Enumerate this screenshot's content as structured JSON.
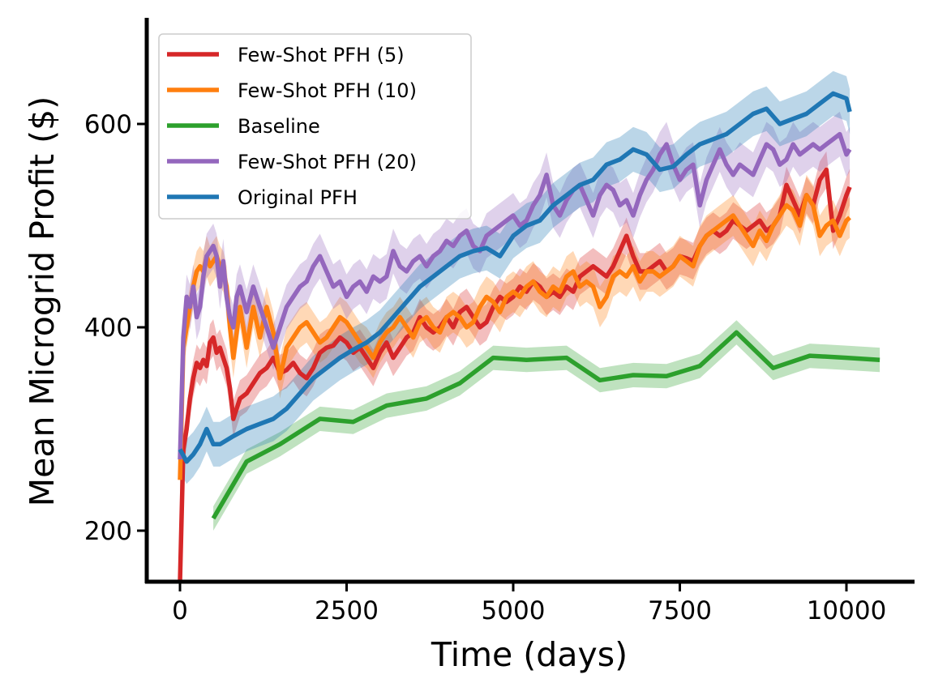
{
  "chart_data": {
    "type": "line",
    "title": "",
    "xlabel": "Time (days)",
    "ylabel": "Mean Microgrid Profit ($)",
    "xlim": [
      -500,
      11000
    ],
    "ylim": [
      150,
      700
    ],
    "xticks": [
      0,
      2500,
      5000,
      7500,
      10000
    ],
    "yticks": [
      200,
      400,
      600
    ],
    "grid": false,
    "legend_position": "top-left",
    "series": [
      {
        "name": "Few-Shot PFH (5)",
        "color": "#d62728",
        "band": 18,
        "x": [
          0,
          50,
          100,
          150,
          200,
          250,
          300,
          350,
          400,
          450,
          500,
          550,
          600,
          650,
          700,
          750,
          800,
          850,
          900,
          1000,
          1100,
          1200,
          1300,
          1400,
          1500,
          1600,
          1700,
          1800,
          1900,
          2000,
          2100,
          2200,
          2300,
          2400,
          2500,
          2600,
          2700,
          2800,
          2900,
          3000,
          3100,
          3200,
          3300,
          3400,
          3500,
          3600,
          3700,
          3800,
          3900,
          4000,
          4100,
          4200,
          4300,
          4400,
          4500,
          4600,
          4700,
          4800,
          4900,
          5000,
          5100,
          5200,
          5300,
          5400,
          5500,
          5600,
          5700,
          5800,
          5900,
          6000,
          6100,
          6200,
          6300,
          6400,
          6500,
          6600,
          6700,
          6800,
          6900,
          7000,
          7100,
          7200,
          7300,
          7400,
          7500,
          7600,
          7700,
          7800,
          7900,
          8000,
          8100,
          8200,
          8300,
          8400,
          8500,
          8600,
          8700,
          8800,
          8900,
          9000,
          9100,
          9200,
          9300,
          9400,
          9500,
          9600,
          9700,
          9800,
          9900,
          10000,
          10050
        ],
        "y": [
          150,
          280,
          300,
          330,
          350,
          365,
          360,
          368,
          362,
          385,
          390,
          375,
          380,
          370,
          360,
          340,
          310,
          320,
          330,
          335,
          345,
          355,
          360,
          370,
          355,
          358,
          365,
          355,
          350,
          360,
          375,
          380,
          382,
          390,
          385,
          375,
          380,
          370,
          360,
          375,
          385,
          370,
          380,
          390,
          395,
          410,
          400,
          395,
          400,
          410,
          400,
          415,
          420,
          410,
          400,
          405,
          420,
          430,
          425,
          430,
          440,
          435,
          445,
          440,
          430,
          435,
          430,
          440,
          435,
          450,
          455,
          460,
          455,
          450,
          460,
          475,
          490,
          470,
          455,
          455,
          460,
          465,
          455,
          460,
          470,
          468,
          465,
          480,
          490,
          495,
          490,
          495,
          505,
          500,
          495,
          500,
          505,
          495,
          500,
          510,
          540,
          525,
          510,
          530,
          520,
          545,
          555,
          495,
          510,
          530,
          538
        ]
      },
      {
        "name": "Few-Shot PFH (10)",
        "color": "#ff7f0e",
        "band": 20,
        "x": [
          0,
          50,
          100,
          150,
          200,
          250,
          300,
          350,
          400,
          450,
          500,
          550,
          600,
          650,
          700,
          750,
          800,
          850,
          900,
          1000,
          1100,
          1200,
          1300,
          1400,
          1500,
          1600,
          1700,
          1800,
          1900,
          2000,
          2100,
          2200,
          2300,
          2400,
          2500,
          2600,
          2700,
          2800,
          2900,
          3000,
          3100,
          3200,
          3300,
          3400,
          3500,
          3600,
          3700,
          3800,
          3900,
          4000,
          4100,
          4200,
          4300,
          4400,
          4500,
          4600,
          4700,
          4800,
          4900,
          5000,
          5100,
          5200,
          5300,
          5400,
          5500,
          5600,
          5700,
          5800,
          5900,
          6000,
          6100,
          6200,
          6300,
          6400,
          6500,
          6600,
          6700,
          6800,
          6900,
          7000,
          7100,
          7200,
          7300,
          7400,
          7500,
          7600,
          7700,
          7800,
          7900,
          8000,
          8100,
          8200,
          8300,
          8400,
          8500,
          8600,
          8700,
          8800,
          8900,
          9000,
          9100,
          9200,
          9300,
          9400,
          9500,
          9600,
          9700,
          9800,
          9900,
          10000,
          10050
        ],
        "y": [
          250,
          380,
          400,
          420,
          440,
          455,
          460,
          455,
          470,
          460,
          465,
          470,
          460,
          455,
          440,
          400,
          370,
          395,
          420,
          380,
          420,
          390,
          420,
          395,
          350,
          380,
          390,
          400,
          405,
          395,
          385,
          390,
          400,
          410,
          405,
          395,
          385,
          380,
          370,
          385,
          395,
          400,
          410,
          400,
          390,
          405,
          410,
          400,
          395,
          410,
          415,
          410,
          400,
          405,
          420,
          430,
          425,
          415,
          430,
          435,
          430,
          440,
          445,
          435,
          430,
          440,
          435,
          450,
          455,
          440,
          445,
          440,
          420,
          430,
          450,
          455,
          450,
          460,
          445,
          455,
          455,
          450,
          455,
          460,
          470,
          465,
          460,
          480,
          490,
          495,
          500,
          505,
          510,
          500,
          490,
          480,
          495,
          485,
          500,
          510,
          520,
          515,
          500,
          530,
          520,
          490,
          500,
          505,
          490,
          505,
          508
        ]
      },
      {
        "name": "Baseline",
        "color": "#2ca02c",
        "band": 12,
        "x": [
          500,
          1000,
          1500,
          2100,
          2600,
          3100,
          3700,
          4200,
          4700,
          5200,
          5800,
          6300,
          6800,
          7300,
          7800,
          8350,
          8900,
          9450,
          10000,
          10500
        ],
        "y": [
          212,
          268,
          285,
          310,
          307,
          323,
          330,
          345,
          370,
          368,
          370,
          348,
          353,
          352,
          362,
          395,
          360,
          372,
          370,
          368
        ]
      },
      {
        "name": "Few-Shot PFH (20)",
        "color": "#9467bd",
        "band": 22,
        "x": [
          0,
          50,
          100,
          150,
          200,
          250,
          300,
          350,
          400,
          450,
          500,
          550,
          600,
          650,
          700,
          750,
          800,
          850,
          900,
          1000,
          1100,
          1200,
          1300,
          1400,
          1500,
          1600,
          1700,
          1800,
          1900,
          2000,
          2100,
          2200,
          2300,
          2400,
          2500,
          2600,
          2700,
          2800,
          2900,
          3000,
          3100,
          3200,
          3300,
          3400,
          3500,
          3600,
          3700,
          3800,
          3900,
          4000,
          4100,
          4200,
          4300,
          4400,
          4500,
          4600,
          4700,
          4800,
          4900,
          5000,
          5100,
          5200,
          5300,
          5400,
          5500,
          5600,
          5700,
          5800,
          5900,
          6000,
          6100,
          6200,
          6300,
          6400,
          6500,
          6600,
          6700,
          6800,
          6900,
          7000,
          7100,
          7200,
          7300,
          7400,
          7500,
          7600,
          7700,
          7800,
          7900,
          8000,
          8100,
          8200,
          8300,
          8400,
          8500,
          8600,
          8700,
          8800,
          8900,
          9000,
          9100,
          9200,
          9300,
          9400,
          9500,
          9600,
          9700,
          9800,
          9900,
          10000,
          10050
        ],
        "y": [
          270,
          390,
          430,
          420,
          440,
          410,
          420,
          450,
          470,
          475,
          480,
          470,
          440,
          465,
          430,
          410,
          400,
          430,
          440,
          415,
          440,
          420,
          400,
          380,
          400,
          420,
          430,
          440,
          445,
          460,
          470,
          455,
          440,
          445,
          430,
          440,
          445,
          435,
          450,
          445,
          450,
          475,
          460,
          455,
          465,
          470,
          460,
          470,
          475,
          485,
          480,
          490,
          495,
          480,
          475,
          490,
          495,
          500,
          505,
          510,
          500,
          505,
          520,
          530,
          550,
          520,
          510,
          525,
          535,
          540,
          525,
          510,
          530,
          540,
          535,
          520,
          525,
          510,
          530,
          545,
          555,
          570,
          580,
          560,
          545,
          555,
          560,
          520,
          545,
          560,
          575,
          560,
          550,
          560,
          555,
          550,
          565,
          580,
          575,
          560,
          565,
          580,
          570,
          575,
          580,
          575,
          580,
          585,
          590,
          570,
          575
        ]
      },
      {
        "name": "Original PFH",
        "color": "#1f77b4",
        "band": 22,
        "x": [
          0,
          100,
          200,
          300,
          400,
          500,
          600,
          800,
          1000,
          1200,
          1400,
          1600,
          1800,
          2000,
          2200,
          2400,
          2600,
          2800,
          3000,
          3200,
          3400,
          3600,
          3800,
          4000,
          4200,
          4400,
          4600,
          4800,
          5000,
          5200,
          5400,
          5600,
          5800,
          6000,
          6200,
          6400,
          6600,
          6800,
          7000,
          7200,
          7400,
          7600,
          7800,
          8000,
          8200,
          8400,
          8600,
          8800,
          9000,
          9200,
          9400,
          9600,
          9800,
          10000,
          10050
        ],
        "y": [
          280,
          268,
          275,
          285,
          300,
          285,
          285,
          293,
          300,
          305,
          310,
          320,
          335,
          350,
          360,
          370,
          378,
          385,
          395,
          410,
          425,
          440,
          450,
          460,
          470,
          475,
          478,
          470,
          490,
          500,
          505,
          520,
          530,
          540,
          545,
          560,
          565,
          575,
          570,
          555,
          558,
          570,
          580,
          585,
          590,
          600,
          610,
          615,
          600,
          605,
          610,
          620,
          630,
          625,
          612
        ]
      }
    ]
  }
}
